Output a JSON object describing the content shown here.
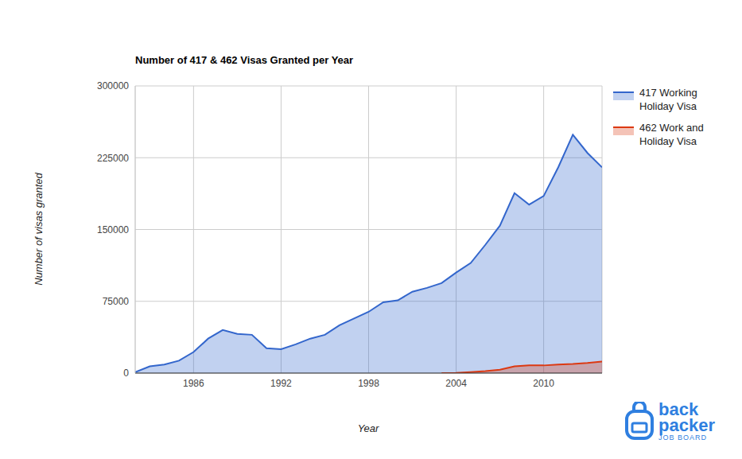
{
  "chart_data": {
    "type": "area",
    "title": "Number of 417 & 462 Visas Granted per Year",
    "x_label": "Year",
    "y_label": "Number of visas granted",
    "x": [
      1982,
      1983,
      1984,
      1985,
      1986,
      1987,
      1988,
      1989,
      1990,
      1991,
      1992,
      1993,
      1994,
      1995,
      1996,
      1997,
      1998,
      1999,
      2000,
      2001,
      2002,
      2003,
      2004,
      2005,
      2006,
      2007,
      2008,
      2009,
      2010,
      2011,
      2012,
      2013,
      2014
    ],
    "series": [
      {
        "name": "417 Working Holiday Visa",
        "color": "#3366cc",
        "values": [
          1000,
          7000,
          9000,
          13000,
          22000,
          36000,
          45000,
          41000,
          40000,
          26000,
          25000,
          30000,
          36000,
          40000,
          50000,
          57000,
          64000,
          74000,
          76000,
          85000,
          89000,
          94000,
          105000,
          115000,
          134000,
          154000,
          188000,
          176000,
          185000,
          215000,
          249000,
          230000,
          215000
        ]
      },
      {
        "name": "462 Work and Holiday Visa",
        "color": "#dc3912",
        "values": [
          null,
          null,
          null,
          null,
          null,
          null,
          null,
          null,
          null,
          null,
          null,
          null,
          null,
          null,
          null,
          null,
          null,
          null,
          null,
          null,
          null,
          0,
          200,
          1000,
          2000,
          3500,
          7000,
          8000,
          8000,
          9000,
          9500,
          10500,
          12000
        ]
      }
    ],
    "xlim": [
      1982,
      2014
    ],
    "xticks": [
      1986,
      1992,
      1998,
      2004,
      2010
    ],
    "ylim": [
      0,
      300000
    ],
    "yticks": [
      0,
      75000,
      150000,
      225000,
      300000
    ],
    "grid": true,
    "legend": "right",
    "annotations": [
      "back",
      "packer",
      "JOB BOARD"
    ]
  }
}
